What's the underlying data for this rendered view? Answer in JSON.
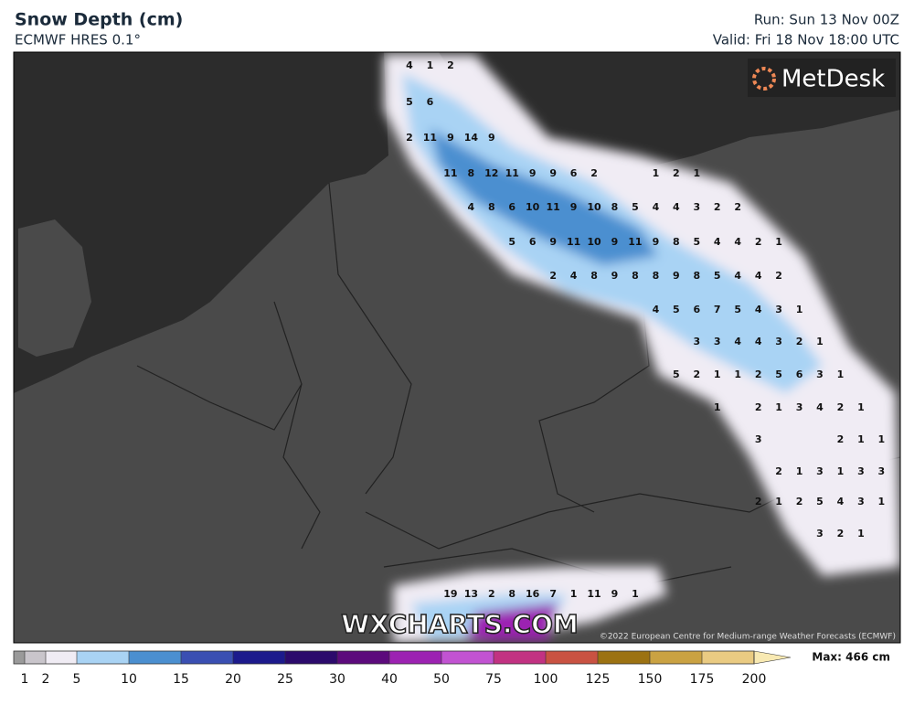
{
  "header": {
    "title": "Snow Depth (cm)",
    "subtitle": "ECMWF HRES 0.1°",
    "run": "Run: Sun 13 Nov 00Z",
    "valid": "Valid: Fri 18 Nov 18:00 UTC"
  },
  "logo": "MetDesk",
  "watermark": "WXCHARTS.COM",
  "copyright": "©2022 European Centre for Medium-range Weather Forecasts (ECMWF)",
  "map_labels": [
    [
      4,
      1,
      2
    ],
    [
      5,
      6
    ],
    [
      2,
      11,
      9,
      14,
      9
    ],
    [
      11,
      8,
      12,
      11,
      9,
      9,
      6,
      2
    ],
    [
      1,
      2,
      1
    ],
    [
      4,
      8,
      6,
      10,
      11,
      9,
      10,
      8,
      5,
      4,
      4,
      3,
      2,
      2
    ],
    [
      5,
      6,
      9,
      11,
      10,
      9,
      11,
      9,
      8,
      5,
      4,
      4,
      2,
      1
    ],
    [
      2,
      4,
      8,
      9,
      8,
      8,
      9,
      8,
      5,
      4,
      4,
      2
    ],
    [
      4,
      5,
      6,
      7,
      5,
      4,
      3,
      1
    ],
    [
      3,
      3,
      4,
      4,
      3,
      2,
      1
    ],
    [
      5,
      2,
      1,
      1,
      2,
      5,
      6,
      3,
      1
    ],
    [
      1
    ],
    [
      2,
      1,
      3,
      4,
      2,
      1
    ],
    [
      3
    ],
    [
      2,
      1,
      1
    ],
    [
      2,
      1,
      3,
      1,
      3,
      3
    ],
    [
      2,
      1,
      2,
      5,
      4,
      3,
      1
    ],
    [
      3,
      2,
      1
    ],
    [
      19,
      13,
      2,
      8,
      16,
      7,
      1,
      11,
      9,
      1
    ]
  ],
  "colorbar": {
    "levels": [
      1,
      2,
      5,
      10,
      15,
      20,
      25,
      30,
      40,
      50,
      75,
      100,
      125,
      150,
      175,
      200
    ],
    "colors": [
      "#9a9a9a",
      "#c9c5cb",
      "#f0ecf4",
      "#a9d3f4",
      "#4b8fd0",
      "#3a4fb2",
      "#1c1a8c",
      "#2c0a6c",
      "#5c0a7c",
      "#9c22b2",
      "#c253d2",
      "#c23282",
      "#c95242",
      "#9c7212",
      "#caa242",
      "#eacb82",
      "#f8e9b2"
    ],
    "max_label": "Max: 466 cm"
  }
}
